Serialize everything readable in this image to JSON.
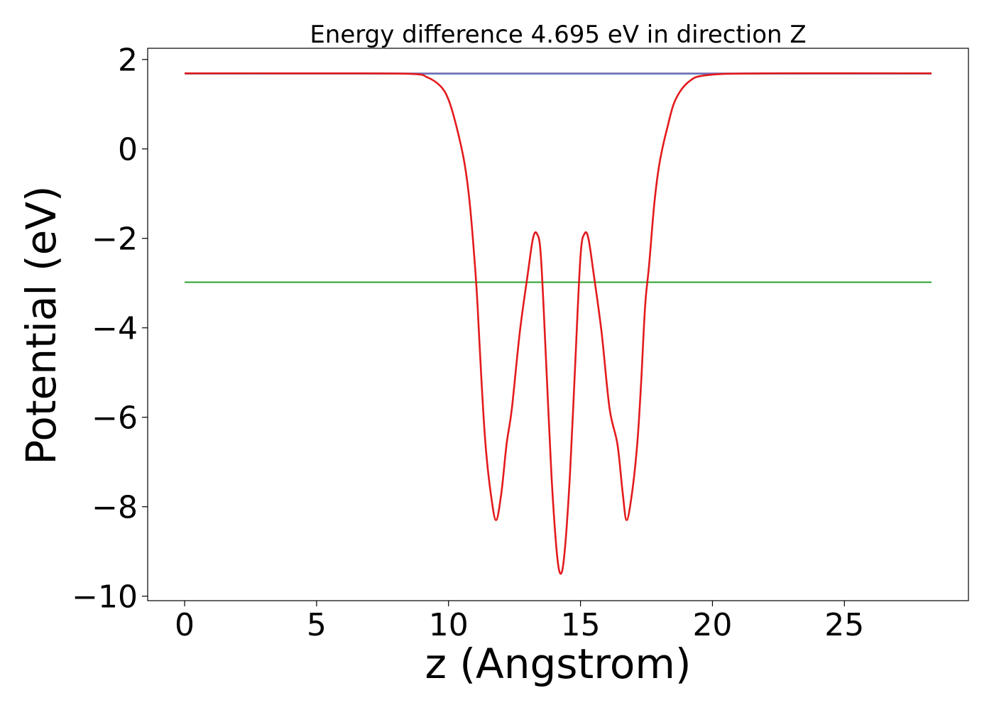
{
  "chart_data": {
    "type": "line",
    "title": "Energy difference 4.695 eV in direction Z",
    "xlabel": "z (Angstrom)",
    "ylabel": "Potential (eV)",
    "xlim": [
      -1.4,
      29.7
    ],
    "ylim": [
      -10.1,
      2.25
    ],
    "xticks": [
      0,
      5,
      10,
      15,
      20,
      25
    ],
    "yticks": [
      2,
      0,
      -2,
      -4,
      -6,
      -8,
      -10
    ],
    "xtick_labels": [
      "0",
      "5",
      "10",
      "15",
      "20",
      "25"
    ],
    "ytick_labels": [
      "2",
      "0",
      "−2",
      "−4",
      "−6",
      "−8",
      "−10"
    ],
    "grid": false,
    "legend": "none",
    "series": [
      {
        "color": "#1f77b4",
        "x": [
          0,
          28.3
        ],
        "y": [
          1.68,
          1.68
        ]
      },
      {
        "color": "#2ca02c",
        "x": [
          0,
          28.3
        ],
        "y": [
          -2.98,
          -2.98
        ]
      },
      {
        "color": "#7b68b5",
        "x": [
          0,
          28.3
        ],
        "y": [
          1.69,
          1.69
        ]
      },
      {
        "color": "#e31a1c",
        "x": [
          0,
          5,
          8.5,
          9.2,
          9.7,
          10.0,
          10.3,
          10.6,
          10.8,
          11.0,
          11.1,
          11.25,
          11.4,
          11.6,
          11.8,
          12.0,
          12.2,
          12.4,
          12.7,
          13.0,
          13.2,
          13.35,
          13.5,
          13.7,
          13.9,
          14.1,
          14.25,
          14.4,
          14.6,
          14.8,
          15.0,
          15.15,
          15.3,
          15.5,
          15.8,
          16.1,
          16.4,
          16.6,
          16.75,
          16.95,
          17.15,
          17.3,
          17.45,
          17.6,
          17.8,
          18.0,
          18.3,
          18.6,
          19.1,
          19.8,
          22,
          28.3
        ],
        "y": [
          1.69,
          1.69,
          1.68,
          1.6,
          1.4,
          1.1,
          0.5,
          -0.3,
          -1.2,
          -2.6,
          -3.5,
          -5.2,
          -6.6,
          -7.7,
          -8.3,
          -7.7,
          -6.6,
          -5.8,
          -4.1,
          -2.8,
          -2.0,
          -1.9,
          -2.4,
          -4.8,
          -7.3,
          -9.0,
          -9.5,
          -9.0,
          -7.3,
          -4.8,
          -2.4,
          -1.9,
          -2.0,
          -2.8,
          -4.1,
          -5.8,
          -6.6,
          -7.7,
          -8.3,
          -7.7,
          -6.6,
          -5.2,
          -3.5,
          -2.6,
          -1.2,
          -0.3,
          0.5,
          1.1,
          1.5,
          1.65,
          1.69,
          1.69
        ]
      }
    ]
  }
}
